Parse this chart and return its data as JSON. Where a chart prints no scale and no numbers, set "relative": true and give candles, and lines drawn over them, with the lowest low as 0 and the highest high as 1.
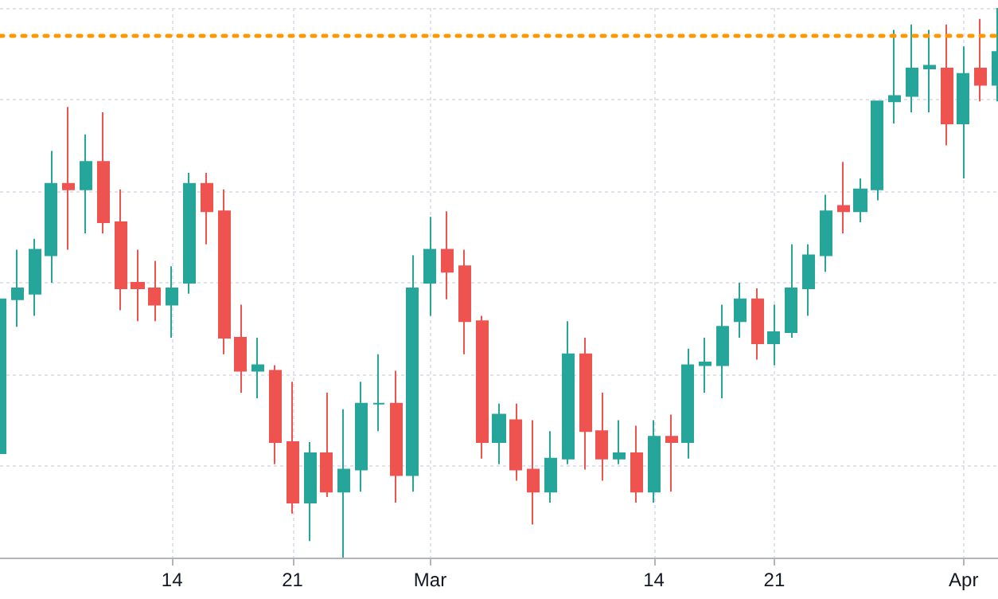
{
  "chart_data": {
    "type": "candlestick",
    "relative": true,
    "grid": true,
    "x": [
      "--02-04",
      "--02-05",
      "--02-06",
      "--02-07",
      "--02-08",
      "--02-09",
      "--02-10",
      "--02-11",
      "--02-12",
      "--02-13",
      "--02-14",
      "--02-15",
      "--02-16",
      "--02-17",
      "--02-18",
      "--02-19",
      "--02-20",
      "--02-21",
      "--02-22",
      "--02-23",
      "--02-24",
      "--02-25",
      "--02-26",
      "--02-27",
      "--02-28",
      "--03-01",
      "--03-02",
      "--03-03",
      "--03-04",
      "--03-05",
      "--03-06",
      "--03-07",
      "--03-08",
      "--03-09",
      "--03-10",
      "--03-11",
      "--03-12",
      "--03-13",
      "--03-14",
      "--03-15",
      "--03-16",
      "--03-17",
      "--03-18",
      "--03-19",
      "--03-20",
      "--03-21",
      "--03-22",
      "--03-23",
      "--03-24",
      "--03-25",
      "--03-26",
      "--03-27",
      "--03-28",
      "--03-29",
      "--03-30",
      "--03-31",
      "--04-01",
      "--04-02",
      "--04-03"
    ],
    "ohlc": [
      [
        0.19,
        0.47,
        0.19,
        0.47
      ],
      [
        0.47,
        0.56,
        0.42,
        0.49
      ],
      [
        0.48,
        0.58,
        0.44,
        0.56
      ],
      [
        0.55,
        0.74,
        0.5,
        0.68
      ],
      [
        0.68,
        0.82,
        0.56,
        0.67
      ],
      [
        0.67,
        0.77,
        0.59,
        0.72
      ],
      [
        0.72,
        0.81,
        0.59,
        0.61
      ],
      [
        0.61,
        0.67,
        0.45,
        0.49
      ],
      [
        0.5,
        0.56,
        0.43,
        0.49
      ],
      [
        0.49,
        0.54,
        0.43,
        0.46
      ],
      [
        0.46,
        0.53,
        0.4,
        0.49
      ],
      [
        0.5,
        0.7,
        0.48,
        0.68
      ],
      [
        0.68,
        0.7,
        0.57,
        0.63
      ],
      [
        0.63,
        0.67,
        0.37,
        0.4
      ],
      [
        0.4,
        0.46,
        0.3,
        0.34
      ],
      [
        0.34,
        0.4,
        0.29,
        0.35
      ],
      [
        0.34,
        0.35,
        0.17,
        0.21
      ],
      [
        0.21,
        0.32,
        0.08,
        0.1
      ],
      [
        0.1,
        0.21,
        0.03,
        0.19
      ],
      [
        0.19,
        0.3,
        0.11,
        0.12
      ],
      [
        0.12,
        0.27,
        0.0,
        0.16
      ],
      [
        0.16,
        0.32,
        0.12,
        0.28
      ],
      [
        0.28,
        0.37,
        0.23,
        0.28
      ],
      [
        0.28,
        0.34,
        0.1,
        0.15
      ],
      [
        0.15,
        0.55,
        0.12,
        0.49
      ],
      [
        0.5,
        0.62,
        0.44,
        0.56
      ],
      [
        0.56,
        0.63,
        0.47,
        0.52
      ],
      [
        0.53,
        0.56,
        0.37,
        0.43
      ],
      [
        0.43,
        0.44,
        0.18,
        0.21
      ],
      [
        0.21,
        0.28,
        0.17,
        0.26
      ],
      [
        0.25,
        0.28,
        0.14,
        0.16
      ],
      [
        0.16,
        0.25,
        0.06,
        0.12
      ],
      [
        0.12,
        0.23,
        0.1,
        0.18
      ],
      [
        0.18,
        0.43,
        0.17,
        0.37
      ],
      [
        0.37,
        0.4,
        0.16,
        0.23
      ],
      [
        0.23,
        0.3,
        0.14,
        0.18
      ],
      [
        0.18,
        0.25,
        0.17,
        0.19
      ],
      [
        0.19,
        0.24,
        0.1,
        0.12
      ],
      [
        0.12,
        0.25,
        0.1,
        0.22
      ],
      [
        0.22,
        0.26,
        0.12,
        0.21
      ],
      [
        0.21,
        0.38,
        0.18,
        0.35
      ],
      [
        0.35,
        0.4,
        0.3,
        0.355
      ],
      [
        0.35,
        0.46,
        0.29,
        0.42
      ],
      [
        0.43,
        0.5,
        0.4,
        0.47
      ],
      [
        0.47,
        0.49,
        0.36,
        0.39
      ],
      [
        0.39,
        0.46,
        0.35,
        0.41
      ],
      [
        0.41,
        0.57,
        0.4,
        0.49
      ],
      [
        0.49,
        0.57,
        0.44,
        0.55
      ],
      [
        0.55,
        0.66,
        0.52,
        0.63
      ],
      [
        0.64,
        0.72,
        0.59,
        0.63
      ],
      [
        0.63,
        0.69,
        0.61,
        0.67
      ],
      [
        0.67,
        0.83,
        0.65,
        0.83
      ],
      [
        0.83,
        0.96,
        0.79,
        0.84
      ],
      [
        0.84,
        0.97,
        0.81,
        0.89
      ],
      [
        0.89,
        0.96,
        0.81,
        0.895
      ],
      [
        0.89,
        0.97,
        0.75,
        0.79
      ],
      [
        0.79,
        0.93,
        0.69,
        0.88
      ],
      [
        0.89,
        0.98,
        0.83,
        0.86
      ],
      [
        0.86,
        1.0,
        0.83,
        0.92
      ]
    ],
    "xlim": [
      "--02-04",
      "--04-03"
    ],
    "xticks": [
      {
        "value": "--02-14",
        "label": "14"
      },
      {
        "value": "--02-21",
        "label": "21"
      },
      {
        "value": "--03-01",
        "label": "Mar"
      },
      {
        "value": "--03-14",
        "label": "14"
      },
      {
        "value": "--03-21",
        "label": "21"
      },
      {
        "value": "--04-01",
        "label": "Apr"
      }
    ],
    "ref_lines": [
      {
        "axis": "y",
        "value": 0.95,
        "label": null,
        "color": "#ff9800",
        "line_style": "dotted"
      }
    ]
  }
}
